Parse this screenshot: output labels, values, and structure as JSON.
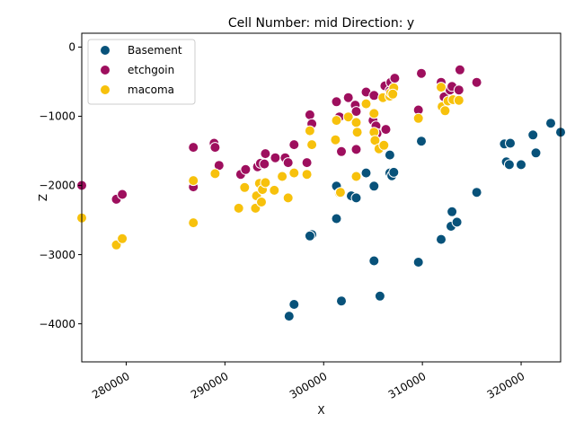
{
  "chart_data": {
    "type": "scatter",
    "title": "Cell Number: mid Direction: y",
    "xlabel": "X",
    "ylabel": "Z",
    "xlim": [
      275500,
      324000
    ],
    "ylim": [
      -4550,
      200
    ],
    "xticks": [
      280000,
      290000,
      300000,
      310000,
      320000
    ],
    "xtick_labels": [
      "280000",
      "290000",
      "300000",
      "310000",
      "320000"
    ],
    "yticks": [
      0,
      -1000,
      -2000,
      -3000,
      -4000
    ],
    "ytick_labels": [
      "0",
      "−1000",
      "−2000",
      "−3000",
      "−4000"
    ],
    "legend_position": "top-left",
    "grid": false,
    "series": [
      {
        "name": "Basement",
        "color": "#08527a",
        "points": [
          [
            296500,
            -3890
          ],
          [
            297000,
            -3720
          ],
          [
            301800,
            -3670
          ],
          [
            305700,
            -3600
          ],
          [
            309600,
            -3110
          ],
          [
            305100,
            -3090
          ],
          [
            298800,
            -2710
          ],
          [
            298600,
            -2730
          ],
          [
            301300,
            -2480
          ],
          [
            311900,
            -2780
          ],
          [
            312900,
            -2590
          ],
          [
            313000,
            -2380
          ],
          [
            313500,
            -2530
          ],
          [
            315500,
            -2100
          ],
          [
            302800,
            -2150
          ],
          [
            303300,
            -2180
          ],
          [
            301300,
            -2010
          ],
          [
            305100,
            -2010
          ],
          [
            304300,
            -1820
          ],
          [
            306700,
            -1820
          ],
          [
            306900,
            -1860
          ],
          [
            307100,
            -1810
          ],
          [
            306700,
            -1560
          ],
          [
            309900,
            -1360
          ],
          [
            318300,
            -1400
          ],
          [
            318900,
            -1390
          ],
          [
            318500,
            -1660
          ],
          [
            318800,
            -1700
          ],
          [
            320000,
            -1700
          ],
          [
            321500,
            -1530
          ],
          [
            321200,
            -1270
          ],
          [
            323000,
            -1100
          ],
          [
            324000,
            -1230
          ]
        ]
      },
      {
        "name": "etchgoin",
        "color": "#9e0f5e",
        "points": [
          [
            275500,
            -2000
          ],
          [
            279000,
            -2200
          ],
          [
            279600,
            -2130
          ],
          [
            286800,
            -2020
          ],
          [
            286800,
            -1450
          ],
          [
            288900,
            -1390
          ],
          [
            289000,
            -1450
          ],
          [
            289400,
            -1710
          ],
          [
            291600,
            -1840
          ],
          [
            292100,
            -1770
          ],
          [
            293300,
            -1730
          ],
          [
            293600,
            -1680
          ],
          [
            294000,
            -1690
          ],
          [
            294100,
            -1540
          ],
          [
            295100,
            -1600
          ],
          [
            296100,
            -1600
          ],
          [
            296400,
            -1670
          ],
          [
            297000,
            -1410
          ],
          [
            298300,
            -1670
          ],
          [
            298600,
            -980
          ],
          [
            298800,
            -1110
          ],
          [
            301300,
            -790
          ],
          [
            301600,
            -1010
          ],
          [
            301800,
            -1510
          ],
          [
            302500,
            -730
          ],
          [
            303200,
            -840
          ],
          [
            303300,
            -930
          ],
          [
            303300,
            -1480
          ],
          [
            304300,
            -650
          ],
          [
            305000,
            -1060
          ],
          [
            305100,
            -700
          ],
          [
            305300,
            -1140
          ],
          [
            305400,
            -1250
          ],
          [
            306200,
            -560
          ],
          [
            306300,
            -1190
          ],
          [
            306700,
            -630
          ],
          [
            306800,
            -510
          ],
          [
            307200,
            -450
          ],
          [
            309600,
            -910
          ],
          [
            309900,
            -380
          ],
          [
            311900,
            -510
          ],
          [
            312200,
            -720
          ],
          [
            312800,
            -620
          ],
          [
            313000,
            -570
          ],
          [
            313700,
            -620
          ],
          [
            313800,
            -330
          ],
          [
            315500,
            -510
          ]
        ]
      },
      {
        "name": "macoma",
        "color": "#f7c10c",
        "points": [
          [
            275500,
            -2470
          ],
          [
            279000,
            -2860
          ],
          [
            279600,
            -2770
          ],
          [
            286800,
            -2540
          ],
          [
            286800,
            -1930
          ],
          [
            289000,
            -1830
          ],
          [
            291400,
            -2330
          ],
          [
            292000,
            -2030
          ],
          [
            293100,
            -2330
          ],
          [
            293200,
            -2150
          ],
          [
            293500,
            -1970
          ],
          [
            293700,
            -2240
          ],
          [
            293800,
            -2060
          ],
          [
            294100,
            -1960
          ],
          [
            295000,
            -2070
          ],
          [
            295800,
            -1870
          ],
          [
            296400,
            -2180
          ],
          [
            297000,
            -1820
          ],
          [
            298300,
            -1840
          ],
          [
            298600,
            -1210
          ],
          [
            298800,
            -1410
          ],
          [
            301200,
            -1340
          ],
          [
            301300,
            -1060
          ],
          [
            301600,
            -2110
          ],
          [
            301700,
            -2100
          ],
          [
            302500,
            -1010
          ],
          [
            303300,
            -1870
          ],
          [
            303300,
            -1090
          ],
          [
            303400,
            -1230
          ],
          [
            304300,
            -820
          ],
          [
            305100,
            -960
          ],
          [
            305100,
            -1230
          ],
          [
            305200,
            -1350
          ],
          [
            305600,
            -1470
          ],
          [
            306000,
            -730
          ],
          [
            306100,
            -1420
          ],
          [
            306700,
            -710
          ],
          [
            306800,
            -660
          ],
          [
            307100,
            -590
          ],
          [
            307000,
            -680
          ],
          [
            309600,
            -1030
          ],
          [
            311900,
            -580
          ],
          [
            312000,
            -860
          ],
          [
            312300,
            -920
          ],
          [
            312600,
            -780
          ],
          [
            313100,
            -760
          ],
          [
            313700,
            -770
          ]
        ]
      }
    ]
  }
}
